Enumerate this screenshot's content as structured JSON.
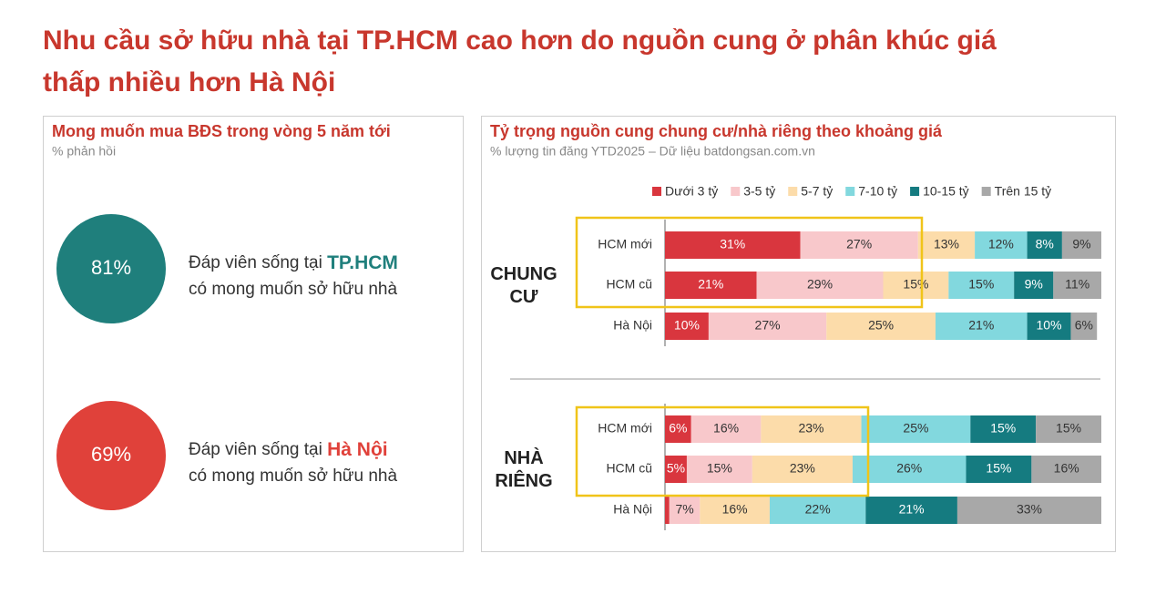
{
  "title": "Nhu cầu sở hữu nhà tại TP.HCM cao hơn do nguồn cung ở phân khúc giá thấp nhiều hơn Hà Nội",
  "left_panel": {
    "title": "Mong muốn mua BĐS trong vòng 5 năm tới",
    "subtitle": "% phản hồi",
    "items": [
      {
        "value": "81%",
        "line1": "Đáp viên sống tại",
        "highlight": "TP.HCM",
        "line2": "có mong muốn sở hữu nhà",
        "color": "#1f7f7c"
      },
      {
        "value": "69%",
        "line1": "Đáp viên sống tại",
        "highlight": "Hà Nội",
        "line2": "có mong muốn sở hữu nhà",
        "color": "#e0413a"
      }
    ]
  },
  "chart_data": {
    "type": "stacked-bar",
    "orientation": "horizontal",
    "title": "Tỷ trọng nguồn cung chung cư/nhà riêng theo khoảng giá",
    "subtitle": "% lượng tin đăng YTD2025 – Dữ liệu batdongsan.com.vn",
    "groups": [
      {
        "name": "CHUNG CƯ",
        "categories": [
          "HCM mới",
          "HCM cũ",
          "Hà Nội"
        ]
      },
      {
        "name": "NHÀ RIÊNG",
        "categories": [
          "HCM mới",
          "HCM cũ",
          "Hà Nội"
        ]
      }
    ],
    "xlim": [
      0,
      100
    ],
    "legend": "top",
    "series": [
      {
        "name": "Dưới 3 tỷ",
        "color": "#d9363e",
        "values": [
          [
            31,
            21,
            10
          ],
          [
            6,
            5,
            1
          ]
        ],
        "value_labels": [
          [
            "31%",
            "21%",
            "10%"
          ],
          [
            "6%",
            "5%",
            null
          ]
        ]
      },
      {
        "name": "3-5 tỷ",
        "color": "#f8c8cb",
        "values": [
          [
            27,
            29,
            27
          ],
          [
            16,
            15,
            7
          ]
        ],
        "value_labels": [
          [
            "27%",
            "29%",
            "27%"
          ],
          [
            "16%",
            "15%",
            "7%"
          ]
        ]
      },
      {
        "name": "5-7 tỷ",
        "color": "#fcdcaa",
        "values": [
          [
            13,
            15,
            25
          ],
          [
            23,
            23,
            16
          ]
        ],
        "value_labels": [
          [
            "13%",
            "15%",
            "25%"
          ],
          [
            "23%",
            "23%",
            "16%"
          ]
        ]
      },
      {
        "name": "7-10 tỷ",
        "color": "#82d8de",
        "values": [
          [
            12,
            15,
            21
          ],
          [
            25,
            26,
            22
          ]
        ],
        "value_labels": [
          [
            "12%",
            "15%",
            "21%"
          ],
          [
            "25%",
            "26%",
            "22%"
          ]
        ]
      },
      {
        "name": "10-15 tỷ",
        "color": "#157b80",
        "values": [
          [
            8,
            9,
            10
          ],
          [
            15,
            15,
            21
          ]
        ],
        "value_labels": [
          [
            "8%",
            "9%",
            "10%"
          ],
          [
            "15%",
            "15%",
            "21%"
          ]
        ]
      },
      {
        "name": "Trên 15 tỷ",
        "color": "#a8a8a8",
        "values": [
          [
            9,
            11,
            6
          ],
          [
            15,
            16,
            33
          ]
        ],
        "value_labels": [
          [
            "9%",
            "11%",
            "6%"
          ],
          [
            "15%",
            "16%",
            "33%"
          ]
        ]
      }
    ]
  }
}
